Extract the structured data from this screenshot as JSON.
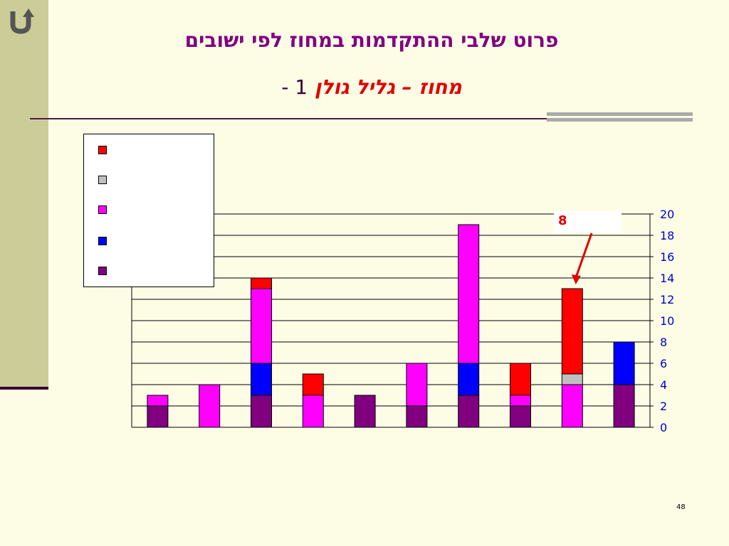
{
  "slide": {
    "title_line1": "פרוט שלבי ההתקדמות במחוז לפי  ישובים",
    "title_line2_num": "1 -",
    "title_line2_district": "מחוז – גליל גולן",
    "page_number": "48",
    "callout": "8",
    "back_icon": "u-turn-arrow-icon",
    "colors": {
      "background": "#fdfde6",
      "sidebar": "#cccc99",
      "title": "#800080",
      "district": "#e00000"
    }
  },
  "chart_data": {
    "type": "bar",
    "stacked": true,
    "categories": [
      "",
      "",
      "",
      "",
      "",
      "",
      "",
      "",
      "",
      ""
    ],
    "series": [
      {
        "color": "#800080",
        "values": [
          2,
          0,
          3,
          0,
          3,
          2,
          3,
          2,
          0,
          4
        ]
      },
      {
        "color": "#0000ff",
        "values": [
          0,
          0,
          3,
          0,
          0,
          0,
          3,
          0,
          0,
          4
        ]
      },
      {
        "color": "#ff00ff",
        "values": [
          1,
          4,
          7,
          3,
          0,
          4,
          13,
          1,
          4,
          0
        ]
      },
      {
        "color": "#c0c0c0",
        "values": [
          0,
          0,
          0,
          0,
          0,
          0,
          0,
          0,
          1,
          0
        ]
      },
      {
        "color": "#ff0000",
        "values": [
          0,
          0,
          1,
          2,
          0,
          0,
          0,
          3,
          8,
          0
        ]
      }
    ],
    "ylim": [
      0,
      20
    ],
    "yticks": [
      "0",
      "2",
      "4",
      "6",
      "8",
      "10",
      "12",
      "14",
      "16",
      "18",
      "20"
    ],
    "y_axis_side": "right",
    "grid": true,
    "legend_position": "top-left",
    "legend_colors": [
      "#ff0000",
      "#c0c0c0",
      "#ff00ff",
      "#0000ff",
      "#800080"
    ],
    "annotation": {
      "text": "8",
      "points_to_category_index": 8
    }
  }
}
